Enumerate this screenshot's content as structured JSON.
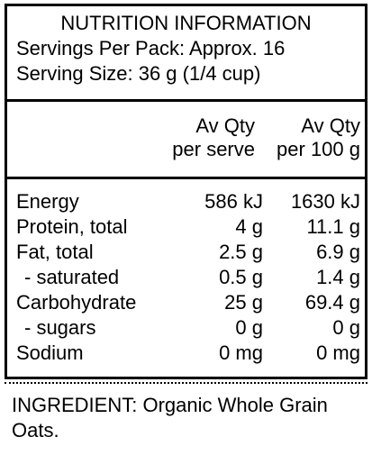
{
  "panel": {
    "title": "NUTRITION INFORMATION",
    "servings_per_pack": "Servings Per Pack: Approx. 16",
    "serving_size": "Serving Size: 36 g (1/4 cup)"
  },
  "columns": {
    "per_serve_line1": "Av Qty",
    "per_serve_line2": "per serve",
    "per_100g_line1": "Av Qty",
    "per_100g_line2": "per 100 g"
  },
  "rows": [
    {
      "name": "Energy",
      "per_serve": "586 kJ",
      "per_100g": "1630 kJ"
    },
    {
      "name": "Protein, total",
      "per_serve": "4 g",
      "per_100g": "11.1 g"
    },
    {
      "name": "Fat, total",
      "per_serve": "2.5 g",
      "per_100g": "6.9 g"
    },
    {
      "name": "- saturated",
      "per_serve": "0.5 g",
      "per_100g": "1.4 g"
    },
    {
      "name": "Carbohydrate",
      "per_serve": "25 g",
      "per_100g": "69.4 g"
    },
    {
      "name": "- sugars",
      "per_serve": "0 g",
      "per_100g": "0 g"
    },
    {
      "name": "Sodium",
      "per_serve": "0 mg",
      "per_100g": "0 mg"
    }
  ],
  "ingredients": {
    "text": "INGREDIENT: Organic Whole Grain Oats."
  }
}
